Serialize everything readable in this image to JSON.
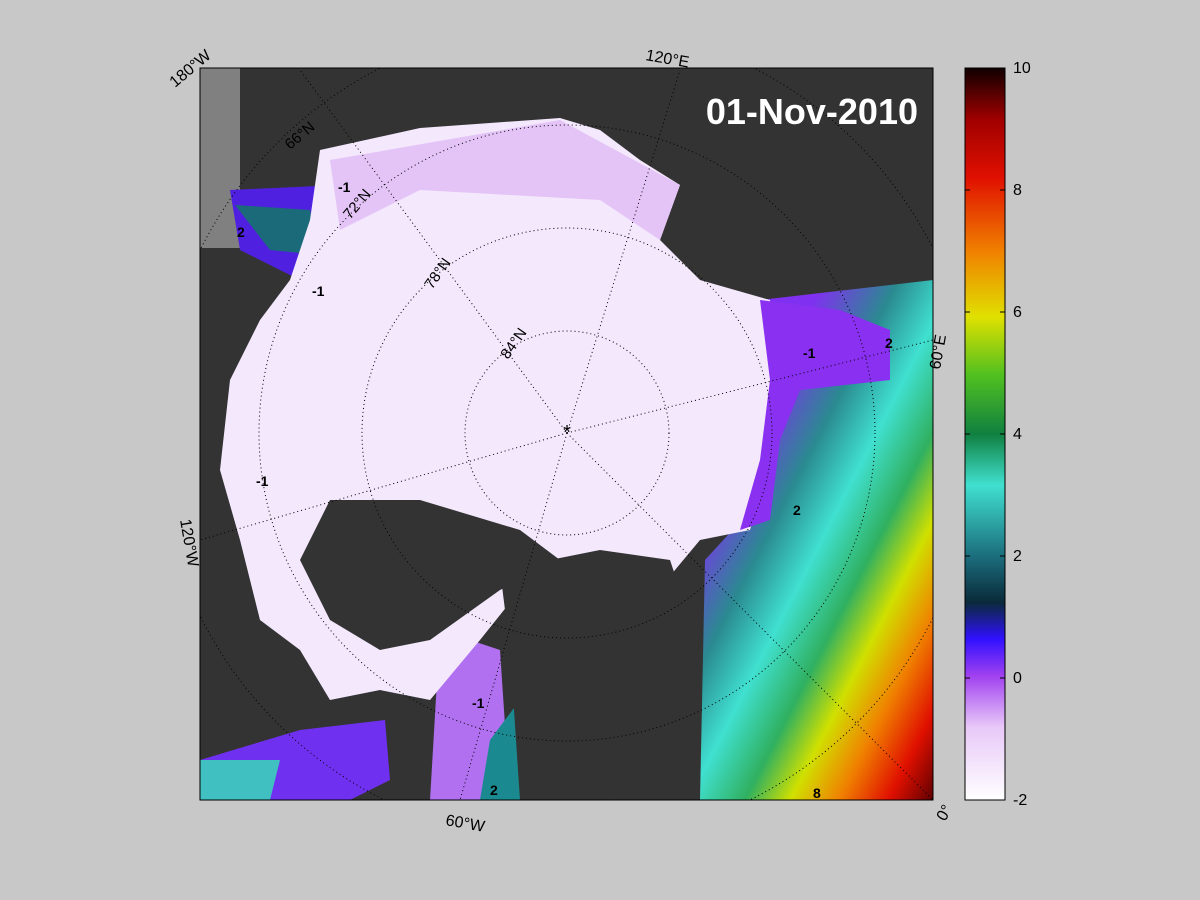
{
  "map": {
    "date": "01-Nov-2010",
    "longitude_labels": [
      "180°W",
      "120°E",
      "60°E",
      "0°",
      "60°W",
      "120°W"
    ],
    "latitude_labels": [
      "66°N",
      "72°N",
      "78°N",
      "84°N"
    ],
    "contour_labels": [
      "-1",
      "-1",
      "-1",
      "-1",
      "-1",
      "2",
      "2",
      "2",
      "2",
      "8"
    ]
  },
  "colorbar": {
    "lim": [
      -2,
      10
    ],
    "ticks": [
      -2,
      0,
      2,
      4,
      6,
      8,
      10
    ]
  }
}
